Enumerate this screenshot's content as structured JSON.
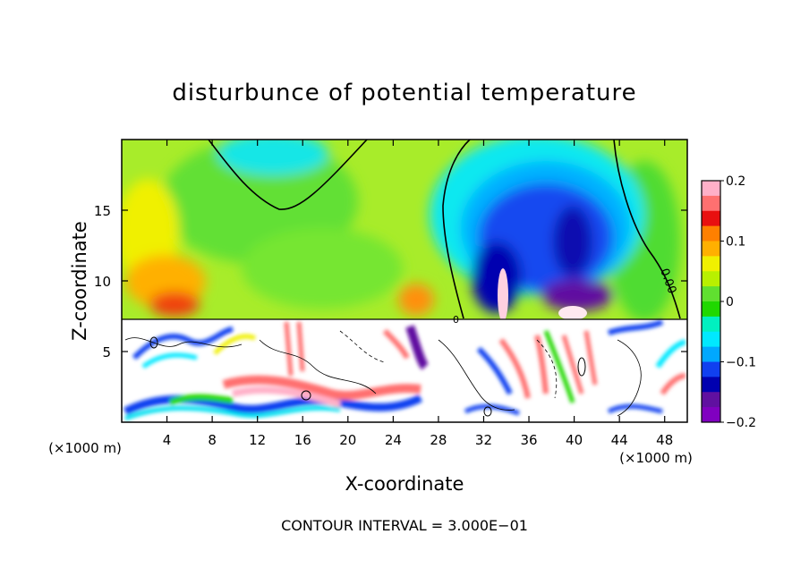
{
  "chart_data": {
    "type": "heatmap",
    "title": "disturbunce of potential temperature",
    "xlabel": "X-coordinate",
    "ylabel": "Z-coordinate",
    "x_unit": "(×1000 m)",
    "y_unit": "(×1000 m)",
    "xlim": [
      0,
      50
    ],
    "ylim": [
      0,
      20
    ],
    "x_ticks": [
      4,
      8,
      12,
      16,
      20,
      24,
      28,
      32,
      36,
      40,
      44,
      48
    ],
    "y_ticks": [
      5,
      10,
      15
    ],
    "colorbar": {
      "range": [
        -0.2,
        0.2
      ],
      "tick_values": [
        0.2,
        0.1,
        0,
        -0.1,
        -0.2
      ],
      "tick_labels": [
        "0.2",
        "0.1",
        "0",
        "−0.1",
        "−0.2"
      ],
      "colors": [
        "#ffb0c8",
        "#ff7070",
        "#e81010",
        "#ff8000",
        "#ffb000",
        "#f0f000",
        "#b8f000",
        "#60e030",
        "#20d800",
        "#00f0c0",
        "#00e8ff",
        "#00a8ff",
        "#1040f0",
        "#0000b0",
        "#6010a0",
        "#8000c0"
      ]
    },
    "contour_interval_text": "CONTOUR INTERVAL = 3.000E−01",
    "contour_labels": [
      "0.00",
      "0"
    ],
    "grid": false
  }
}
